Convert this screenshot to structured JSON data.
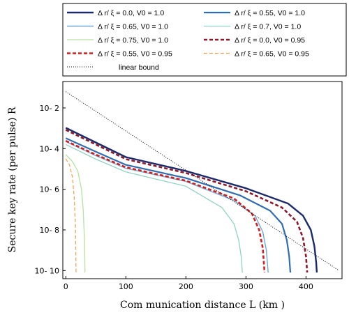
{
  "chart_data": {
    "type": "line",
    "xlabel": "Com munication distance L  (km )",
    "ylabel": "Secure key rate (per pulse)  R",
    "xlim": [
      -5,
      460
    ],
    "ylim_log10": [
      -10.4,
      -0.7
    ],
    "x_ticks": [
      0,
      100,
      200,
      300,
      400
    ],
    "x_tick_labels": [
      "0",
      "100",
      "200",
      "300",
      "400"
    ],
    "y_ticks_log10": [
      -2,
      -4,
      -6,
      -8,
      -10
    ],
    "y_tick_labels": [
      "10- 2",
      "10- 4",
      "10- 6",
      "10- 8",
      "10- 10"
    ],
    "legend_position": "top",
    "series": [
      {
        "name": "Δ  r/ ξ  =  0.0,  V0  =  1.0",
        "color": "#1b2a6b",
        "dash": "solid",
        "width": 2.4,
        "points": [
          [
            0,
            -2.98
          ],
          [
            50,
            -3.7
          ],
          [
            100,
            -4.42
          ],
          [
            200,
            -5.1
          ],
          [
            300,
            -5.95
          ],
          [
            370,
            -6.7
          ],
          [
            395,
            -7.3
          ],
          [
            408,
            -8
          ],
          [
            414,
            -8.8
          ],
          [
            417,
            -9.6
          ],
          [
            418,
            -10.1
          ]
        ]
      },
      {
        "name": "Δ  r/ ξ  =  0.55,  V0  =  1.0",
        "color": "#2f6db0",
        "dash": "solid",
        "width": 2.2,
        "points": [
          [
            0,
            -3.49
          ],
          [
            50,
            -4.15
          ],
          [
            100,
            -4.8
          ],
          [
            200,
            -5.45
          ],
          [
            290,
            -6.3
          ],
          [
            340,
            -7.05
          ],
          [
            360,
            -7.7
          ],
          [
            368,
            -8.5
          ],
          [
            372,
            -9.3
          ],
          [
            374,
            -10.1
          ]
        ]
      },
      {
        "name": "Δ  r/ ξ  =  0.65,  V0  =  1.0",
        "color": "#6fa8d6",
        "dash": "solid",
        "width": 1.4,
        "points": [
          [
            0,
            -3.65
          ],
          [
            50,
            -4.35
          ],
          [
            100,
            -4.97
          ],
          [
            200,
            -5.62
          ],
          [
            280,
            -6.55
          ],
          [
            315,
            -7.3
          ],
          [
            328,
            -8.1
          ],
          [
            334,
            -9
          ],
          [
            337,
            -10.1
          ]
        ]
      },
      {
        "name": "Δ  r/ ξ  =  0.7,  V0  =  1.0",
        "color": "#8fd1c4",
        "dash": "solid",
        "width": 1.3,
        "points": [
          [
            0,
            -3.8
          ],
          [
            50,
            -4.52
          ],
          [
            100,
            -5.15
          ],
          [
            200,
            -5.85
          ],
          [
            260,
            -6.9
          ],
          [
            280,
            -7.7
          ],
          [
            288,
            -8.5
          ],
          [
            292,
            -9.3
          ],
          [
            294,
            -10.1
          ]
        ]
      },
      {
        "name": "Δ  r/ ξ  =  0.75,  V0  =  1.0",
        "color": "#b8e0a0",
        "dash": "solid",
        "width": 1.3,
        "points": [
          [
            0,
            -4.3
          ],
          [
            10,
            -4.6
          ],
          [
            20,
            -5.1
          ],
          [
            26,
            -6
          ],
          [
            29,
            -7
          ],
          [
            31,
            -8.5
          ],
          [
            32,
            -10.1
          ]
        ]
      },
      {
        "name": "Δ  r/ ξ  =  0.0,  V0  =  0.95",
        "color": "#8b1a2b",
        "dash": "5,3",
        "width": 2.6,
        "points": [
          [
            0,
            -3.08
          ],
          [
            50,
            -3.8
          ],
          [
            100,
            -4.52
          ],
          [
            200,
            -5.2
          ],
          [
            300,
            -6.1
          ],
          [
            360,
            -6.9
          ],
          [
            385,
            -7.6
          ],
          [
            395,
            -8.4
          ],
          [
            400,
            -9.3
          ],
          [
            402,
            -10.1
          ]
        ]
      },
      {
        "name": "Δ  r/ ξ  =  0.55,  V0  =  0.95",
        "color": "#d21e1e",
        "dash": "5,3",
        "width": 2.6,
        "points": [
          [
            0,
            -3.62
          ],
          [
            50,
            -4.3
          ],
          [
            100,
            -4.92
          ],
          [
            200,
            -5.58
          ],
          [
            280,
            -6.45
          ],
          [
            310,
            -7.2
          ],
          [
            322,
            -8
          ],
          [
            328,
            -8.9
          ],
          [
            331,
            -10.1
          ]
        ]
      },
      {
        "name": "Δ  r/ ξ  =  0.65,  V0  =  0.95",
        "color": "#f2a25a",
        "dash": "5,3",
        "width": 1.3,
        "points": [
          [
            0,
            -4.5
          ],
          [
            6,
            -4.8
          ],
          [
            11,
            -5.4
          ],
          [
            14,
            -6.4
          ],
          [
            16,
            -7.8
          ],
          [
            17,
            -10.1
          ]
        ]
      },
      {
        "name": "linear bound",
        "color": "#000000",
        "dash": "1,2",
        "width": 1.0,
        "points": [
          [
            0,
            -1.2
          ],
          [
            455,
            -10.0
          ]
        ]
      }
    ]
  }
}
